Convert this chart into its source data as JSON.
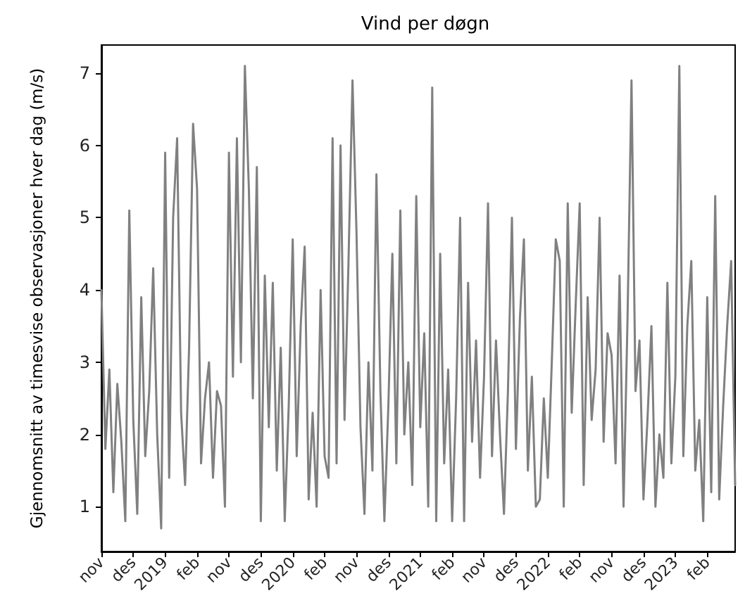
{
  "chart_data": {
    "type": "line",
    "title": "Vind per døgn",
    "ylabel": "Gjennomsnitt av timesvise observasjoner hver dag (m/s)",
    "categories": [
      "nov",
      null,
      null,
      null,
      null,
      null,
      null,
      null,
      "des",
      null,
      null,
      null,
      null,
      null,
      null,
      null,
      "2019",
      null,
      null,
      null,
      null,
      null,
      null,
      null,
      "feb",
      null,
      null,
      null,
      null,
      null,
      null,
      null,
      "nov",
      null,
      null,
      null,
      null,
      null,
      null,
      null,
      "des",
      null,
      null,
      null,
      null,
      null,
      null,
      null,
      "2020",
      null,
      null,
      null,
      null,
      null,
      null,
      null,
      "feb",
      null,
      null,
      null,
      null,
      null,
      null,
      null,
      "nov",
      null,
      null,
      null,
      null,
      null,
      null,
      null,
      "des",
      null,
      null,
      null,
      null,
      null,
      null,
      null,
      "2021",
      null,
      null,
      null,
      null,
      null,
      null,
      null,
      "feb",
      null,
      null,
      null,
      null,
      null,
      null,
      null,
      "nov",
      null,
      null,
      null,
      null,
      null,
      null,
      null,
      "des",
      null,
      null,
      null,
      null,
      null,
      null,
      null,
      "2022",
      null,
      null,
      null,
      null,
      null,
      null,
      null,
      "feb",
      null,
      null,
      null,
      null,
      null,
      null,
      null,
      "nov",
      null,
      null,
      null,
      null,
      null,
      null,
      null,
      "des",
      null,
      null,
      null,
      null,
      null,
      null,
      null,
      "2023",
      null,
      null,
      null,
      null,
      null,
      null,
      null,
      "feb",
      null,
      null,
      null,
      null,
      null,
      null,
      null
    ],
    "series": [
      {
        "color": "#808080",
        "values": [
          4.0,
          1.8,
          2.9,
          1.2,
          2.7,
          1.9,
          0.8,
          5.1,
          2.2,
          0.9,
          3.9,
          1.7,
          2.6,
          4.3,
          2.0,
          0.7,
          5.9,
          1.4,
          5.0,
          6.1,
          2.3,
          1.3,
          3.2,
          6.3,
          5.4,
          1.6,
          2.5,
          3.0,
          1.4,
          2.6,
          2.4,
          1.0,
          5.9,
          2.8,
          6.1,
          3.0,
          7.1,
          5.4,
          2.5,
          5.7,
          0.8,
          4.2,
          2.1,
          4.1,
          1.5,
          3.2,
          0.8,
          2.4,
          4.7,
          1.7,
          3.5,
          4.6,
          1.1,
          2.3,
          1.0,
          4.0,
          1.7,
          1.4,
          6.1,
          1.6,
          6.0,
          2.2,
          4.4,
          6.9,
          4.8,
          2.1,
          0.9,
          3.0,
          1.5,
          5.6,
          2.6,
          0.8,
          2.4,
          4.5,
          1.6,
          5.1,
          2.0,
          3.0,
          1.3,
          5.3,
          2.1,
          3.4,
          1.0,
          6.8,
          0.8,
          4.5,
          1.6,
          2.9,
          0.8,
          2.5,
          5.0,
          0.8,
          4.1,
          1.9,
          3.3,
          1.4,
          2.8,
          5.2,
          1.7,
          3.3,
          2.0,
          0.9,
          2.6,
          5.0,
          1.8,
          3.6,
          4.7,
          1.5,
          2.8,
          1.0,
          1.1,
          2.5,
          1.4,
          3.0,
          4.7,
          4.4,
          1.0,
          5.2,
          2.3,
          3.8,
          5.2,
          1.3,
          3.9,
          2.2,
          2.9,
          5.0,
          1.9,
          3.4,
          3.1,
          1.6,
          4.2,
          1.0,
          3.6,
          6.9,
          2.6,
          3.3,
          1.1,
          2.2,
          3.5,
          1.0,
          2.0,
          1.4,
          4.1,
          1.6,
          2.8,
          7.1,
          1.7,
          3.5,
          4.4,
          1.5,
          2.2,
          0.8,
          3.9,
          1.2,
          5.3,
          1.1,
          2.4,
          3.5,
          4.4,
          1.3
        ]
      }
    ],
    "ylim": [
      0.38,
      7.39
    ],
    "yticks": [
      1,
      2,
      3,
      4,
      5,
      6,
      7
    ],
    "marker": "none",
    "line_style": "solid"
  }
}
